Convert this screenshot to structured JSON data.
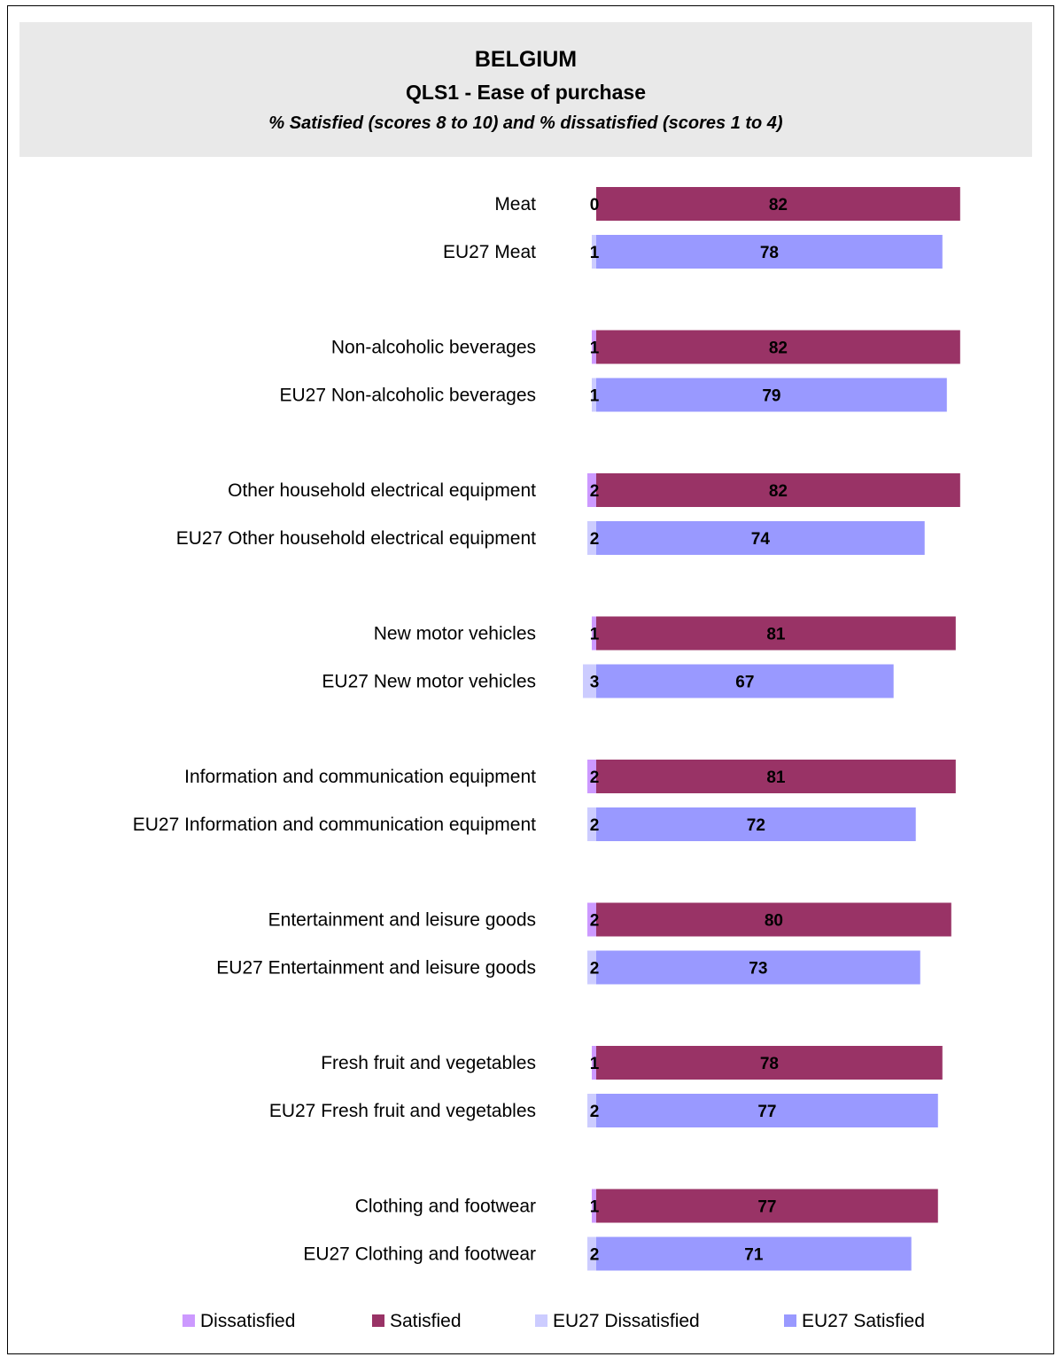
{
  "header": {
    "title": "BELGIUM",
    "subtitle": "QLS1 - Ease of purchase",
    "note": "%  Satisfied (scores 8 to 10) and % dissatisfied (scores 1 to 4)"
  },
  "colors": {
    "dissatisfied": "#cc99ff",
    "satisfied": "#993366",
    "eu_dissatisfied": "#ccccff",
    "eu_satisfied": "#9999ff"
  },
  "chart_data": {
    "type": "bar",
    "orientation": "horizontal",
    "stacked": true,
    "title": "BELGIUM",
    "subtitle": "QLS1 - Ease of purchase",
    "note": "%  Satisfied (scores 8 to 10) and % dissatisfied (scores 1 to 4)",
    "grid": false,
    "legend_position": "bottom",
    "legend": [
      "Dissatisfied",
      "Satisfied",
      "EU27 Dissatisfied",
      "EU27 Satisfied"
    ],
    "rows": [
      {
        "label": "Meat",
        "kind": "country",
        "dissatisfied": 0,
        "satisfied": 82
      },
      {
        "label": "EU27 Meat",
        "kind": "eu",
        "dissatisfied": 1,
        "satisfied": 78
      },
      {
        "label": "Non-alcoholic beverages",
        "kind": "country",
        "dissatisfied": 1,
        "satisfied": 82
      },
      {
        "label": "EU27 Non-alcoholic beverages",
        "kind": "eu",
        "dissatisfied": 1,
        "satisfied": 79
      },
      {
        "label": "Other household electrical equipment",
        "kind": "country",
        "dissatisfied": 2,
        "satisfied": 82
      },
      {
        "label": "EU27 Other household electrical equipment",
        "kind": "eu",
        "dissatisfied": 2,
        "satisfied": 74
      },
      {
        "label": "New motor vehicles",
        "kind": "country",
        "dissatisfied": 1,
        "satisfied": 81
      },
      {
        "label": "EU27 New motor vehicles",
        "kind": "eu",
        "dissatisfied": 3,
        "satisfied": 67
      },
      {
        "label": "Information and communication equipment",
        "kind": "country",
        "dissatisfied": 2,
        "satisfied": 81
      },
      {
        "label": "EU27 Information and communication equipment",
        "kind": "eu",
        "dissatisfied": 2,
        "satisfied": 72
      },
      {
        "label": "Entertainment and leisure goods",
        "kind": "country",
        "dissatisfied": 2,
        "satisfied": 80
      },
      {
        "label": "EU27 Entertainment and leisure goods",
        "kind": "eu",
        "dissatisfied": 2,
        "satisfied": 73
      },
      {
        "label": "Fresh fruit and vegetables",
        "kind": "country",
        "dissatisfied": 1,
        "satisfied": 78
      },
      {
        "label": "EU27 Fresh fruit and vegetables",
        "kind": "eu",
        "dissatisfied": 2,
        "satisfied": 77
      },
      {
        "label": "Clothing and footwear",
        "kind": "country",
        "dissatisfied": 1,
        "satisfied": 77
      },
      {
        "label": "EU27 Clothing and footwear",
        "kind": "eu",
        "dissatisfied": 2,
        "satisfied": 71
      }
    ]
  }
}
